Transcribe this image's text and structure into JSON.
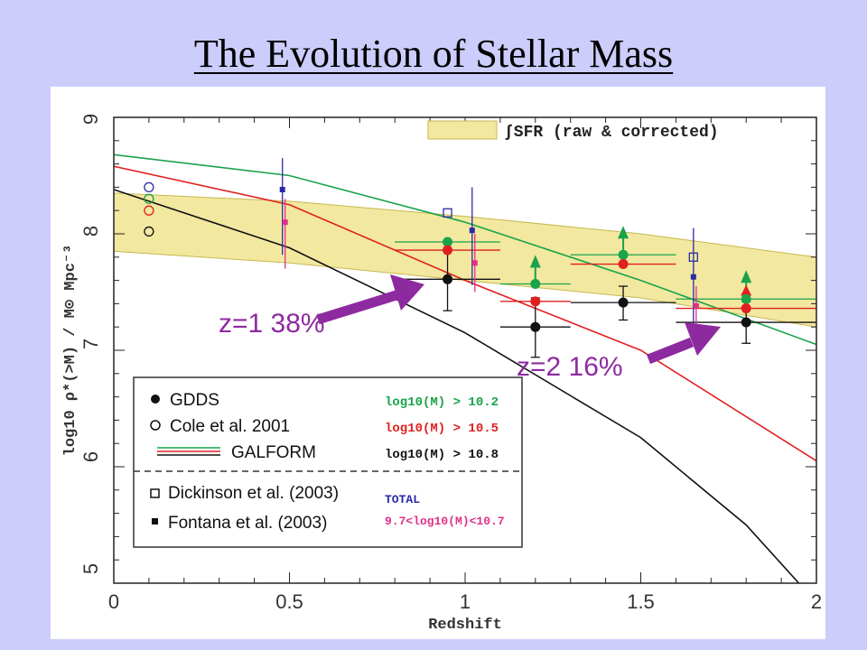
{
  "slide": {
    "title": "The Evolution of Stellar Mass"
  },
  "chart_data": {
    "type": "scatter",
    "title": "",
    "xlabel": "Redshift",
    "ylabel": "log10 ρ*(>M) / M⊙ Mpc⁻³",
    "xlim": [
      0,
      2
    ],
    "ylim": [
      5,
      9
    ],
    "x_ticks": [
      "0",
      "0.5",
      "1",
      "1.5",
      "2"
    ],
    "y_ticks": [
      "5",
      "6",
      "7",
      "8",
      "9"
    ],
    "band": {
      "label": "∫SFR (raw & corrected)",
      "color": "#f2e8a0",
      "x": [
        0,
        0.5,
        1.0,
        1.5,
        2.0
      ],
      "lower": [
        7.85,
        7.75,
        7.6,
        7.45,
        7.2
      ],
      "upper": [
        8.35,
        8.28,
        8.15,
        8.0,
        7.8
      ]
    },
    "models": [
      {
        "name": "log10(M) > 10.2",
        "color": "#1aa34a",
        "x": [
          0,
          0.5,
          1.0,
          1.5,
          2.0
        ],
        "y": [
          8.68,
          8.5,
          8.1,
          7.6,
          7.05
        ]
      },
      {
        "name": "log10(M) > 10.5",
        "color": "#e02020",
        "x": [
          0,
          0.5,
          1.0,
          1.5,
          2.0
        ],
        "y": [
          8.58,
          8.25,
          7.6,
          7.0,
          6.05
        ]
      },
      {
        "name": "log10(M) > 10.8",
        "color": "#111111",
        "x": [
          0,
          0.5,
          1.0,
          1.5,
          1.8,
          1.95
        ],
        "y": [
          8.38,
          7.88,
          7.15,
          6.25,
          5.5,
          5.0
        ]
      }
    ],
    "gdds": [
      {
        "z": 0.95,
        "green": 7.93,
        "red": 7.86,
        "black": 7.61,
        "xerr": [
          0.8,
          1.1
        ],
        "yerr": [
          7.34,
          7.87
        ]
      },
      {
        "z": 1.2,
        "green": 7.57,
        "red": 7.42,
        "black": 7.2,
        "xerr": [
          1.1,
          1.3
        ],
        "yerr": [
          6.94,
          7.45
        ]
      },
      {
        "z": 1.45,
        "green": 7.82,
        "red": 7.74,
        "black": 7.41,
        "xerr": [
          1.3,
          1.6
        ],
        "yerr": [
          7.26,
          7.55
        ]
      },
      {
        "z": 1.8,
        "green": 7.44,
        "red": 7.36,
        "black": 7.24,
        "xerr": [
          1.6,
          2.0
        ],
        "yerr": [
          7.06,
          7.42
        ]
      }
    ],
    "cole_2001": {
      "z": 0.1,
      "blue": 8.4,
      "green": 8.3,
      "red": 8.2,
      "black": 8.02
    },
    "dickinson_2003": [
      {
        "z": 0.95,
        "y": 8.18
      },
      {
        "z": 1.65,
        "y": 7.8
      }
    ],
    "fontana_2003": [
      {
        "z": 0.48,
        "total": 8.38,
        "mid": 8.1,
        "total_err": [
          7.82,
          8.65
        ],
        "mid_err": [
          7.7,
          8.3
        ]
      },
      {
        "z": 1.02,
        "total": 8.03,
        "mid": 7.75,
        "total_err": [
          7.56,
          8.4
        ],
        "mid_err": [
          7.5,
          8.0
        ]
      },
      {
        "z": 1.65,
        "total": 7.63,
        "mid": 7.38,
        "total_err": [
          7.2,
          8.05
        ],
        "mid_err": [
          7.2,
          7.55
        ]
      }
    ],
    "annotations": [
      {
        "text": "z=1 38%"
      },
      {
        "text": "z=2 16%"
      }
    ],
    "legend": {
      "markers": [
        "GDDS",
        "Cole et al. 2001",
        "GALFORM",
        "Dickinson et al. (2003)",
        "Fontana et al. (2003)"
      ],
      "mass_cuts": [
        "log10(M) > 10.2",
        "log10(M) > 10.5",
        "log10(M) > 10.8"
      ],
      "total_label": "TOTAL",
      "range_label": "9.7<log10(M)<10.7"
    },
    "colors": {
      "green": "#1aa34a",
      "red": "#e02020",
      "black": "#111111",
      "blue": "#2a2aa8",
      "magenta": "#e0308a",
      "arrow": "#8e2aa0"
    }
  }
}
